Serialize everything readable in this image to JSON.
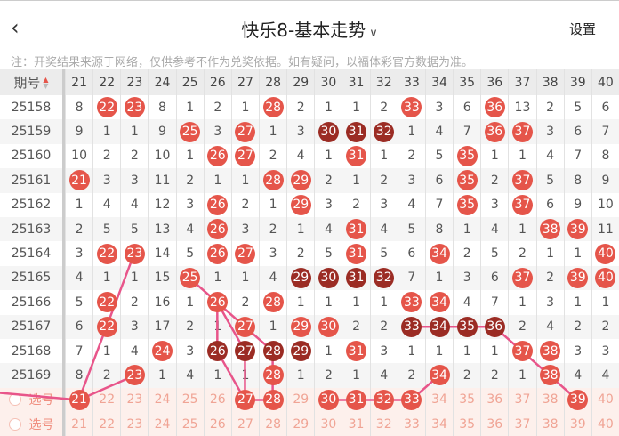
{
  "header": {
    "back_icon": "chevron-left-icon",
    "title": "快乐8-基本走势",
    "title_dropdown_icon": "chevron-down-icon",
    "settings_label": "设置"
  },
  "note": "注：开奖结果来源于网络，仅供参考不作为兑奖依据。如有疑问，以福体彩官方数据为准。",
  "colors": {
    "ball": "#e5554a",
    "consecutive_ball": "#9b2c24",
    "line": "#e8558a",
    "select_row_bg": "#fdf0ec"
  },
  "table": {
    "period_header": "期号",
    "columns": [
      "21",
      "22",
      "23",
      "24",
      "25",
      "26",
      "27",
      "28",
      "29",
      "30",
      "31",
      "32",
      "33",
      "34",
      "35",
      "36",
      "37",
      "38",
      "39",
      "40"
    ],
    "rows": [
      {
        "period": "25158",
        "cells": [
          "8",
          "22",
          "23",
          "8",
          "1",
          "2",
          "1",
          "28",
          "2",
          "1",
          "1",
          "2",
          "33",
          "3",
          "6",
          "36",
          "13",
          "2",
          "5",
          "6"
        ],
        "hits": [
          22,
          23,
          28,
          33,
          36
        ],
        "consecutive": []
      },
      {
        "period": "25159",
        "cells": [
          "9",
          "1",
          "1",
          "9",
          "25",
          "3",
          "27",
          "1",
          "3",
          "30",
          "31",
          "32",
          "1",
          "4",
          "7",
          "36",
          "37",
          "3",
          "6",
          "7"
        ],
        "hits": [
          25,
          27,
          30,
          31,
          32,
          36,
          37
        ],
        "consecutive": [
          30,
          31,
          32
        ]
      },
      {
        "period": "25160",
        "cells": [
          "10",
          "2",
          "2",
          "10",
          "1",
          "26",
          "27",
          "2",
          "4",
          "1",
          "31",
          "1",
          "2",
          "5",
          "35",
          "1",
          "1",
          "4",
          "7",
          "8"
        ],
        "hits": [
          26,
          27,
          31,
          35
        ],
        "consecutive": []
      },
      {
        "period": "25161",
        "cells": [
          "21",
          "3",
          "3",
          "11",
          "2",
          "1",
          "1",
          "28",
          "29",
          "2",
          "1",
          "2",
          "3",
          "6",
          "35",
          "2",
          "37",
          "5",
          "8",
          "9"
        ],
        "hits": [
          21,
          28,
          29,
          35,
          37
        ],
        "consecutive": []
      },
      {
        "period": "25162",
        "cells": [
          "1",
          "4",
          "4",
          "12",
          "3",
          "26",
          "2",
          "1",
          "29",
          "3",
          "2",
          "3",
          "4",
          "7",
          "35",
          "3",
          "37",
          "6",
          "9",
          "10"
        ],
        "hits": [
          26,
          29,
          35,
          37
        ],
        "consecutive": []
      },
      {
        "period": "25163",
        "cells": [
          "2",
          "5",
          "5",
          "13",
          "4",
          "26",
          "3",
          "2",
          "1",
          "4",
          "31",
          "4",
          "5",
          "8",
          "1",
          "4",
          "1",
          "38",
          "39",
          "11"
        ],
        "hits": [
          26,
          31,
          38,
          39
        ],
        "consecutive": []
      },
      {
        "period": "25164",
        "cells": [
          "3",
          "22",
          "23",
          "14",
          "5",
          "26",
          "27",
          "3",
          "2",
          "5",
          "31",
          "5",
          "6",
          "34",
          "2",
          "5",
          "2",
          "1",
          "1",
          "40"
        ],
        "hits": [
          22,
          23,
          26,
          27,
          31,
          34,
          40
        ],
        "consecutive": []
      },
      {
        "period": "25165",
        "cells": [
          "4",
          "1",
          "1",
          "15",
          "25",
          "1",
          "1",
          "4",
          "29",
          "30",
          "31",
          "32",
          "7",
          "1",
          "3",
          "6",
          "37",
          "2",
          "39",
          "40"
        ],
        "hits": [
          25,
          29,
          30,
          31,
          32,
          37,
          39,
          40
        ],
        "consecutive": [
          29,
          30,
          31,
          32
        ]
      },
      {
        "period": "25166",
        "cells": [
          "5",
          "22",
          "2",
          "16",
          "1",
          "26",
          "2",
          "28",
          "1",
          "1",
          "1",
          "1",
          "33",
          "34",
          "4",
          "7",
          "1",
          "3",
          "1",
          "1"
        ],
        "hits": [
          22,
          26,
          28,
          33,
          34
        ],
        "consecutive": []
      },
      {
        "period": "25167",
        "cells": [
          "6",
          "22",
          "3",
          "17",
          "2",
          "1",
          "27",
          "1",
          "29",
          "30",
          "2",
          "2",
          "33",
          "34",
          "35",
          "36",
          "2",
          "4",
          "2",
          "2"
        ],
        "hits": [
          22,
          27,
          29,
          30,
          33,
          34,
          35,
          36
        ],
        "consecutive": [
          33,
          34,
          35,
          36
        ]
      },
      {
        "period": "25168",
        "cells": [
          "7",
          "1",
          "4",
          "24",
          "3",
          "26",
          "27",
          "28",
          "29",
          "1",
          "31",
          "3",
          "1",
          "1",
          "1",
          "1",
          "37",
          "38",
          "3",
          "3"
        ],
        "hits": [
          24,
          26,
          27,
          28,
          29,
          31,
          37,
          38
        ],
        "consecutive": [
          26,
          27,
          28,
          29
        ]
      },
      {
        "period": "25169",
        "cells": [
          "8",
          "2",
          "23",
          "1",
          "4",
          "1",
          "1",
          "28",
          "1",
          "2",
          "1",
          "4",
          "2",
          "34",
          "2",
          "2",
          "1",
          "38",
          "4",
          "4"
        ],
        "hits": [
          23,
          28,
          34,
          38
        ],
        "consecutive": []
      }
    ],
    "select_rows": [
      {
        "label": "选号",
        "selected": [
          21,
          27,
          28,
          30,
          31,
          32,
          33,
          39
        ]
      },
      {
        "label": "选号",
        "selected": []
      }
    ],
    "trend_lines": [
      [
        [
          "25164",
          23
        ],
        [
          "select",
          21
        ],
        [
          "25169",
          23
        ]
      ],
      [
        [
          "25165",
          25
        ],
        [
          "25166",
          26
        ],
        [
          "25167",
          27
        ],
        [
          "25168",
          28
        ],
        [
          "25169",
          28
        ],
        [
          "select",
          28
        ],
        [
          "select",
          27
        ]
      ],
      [
        [
          "25166",
          26
        ],
        [
          "25168",
          26
        ],
        [
          "select",
          27
        ]
      ],
      [
        [
          "25166",
          26
        ],
        [
          "25168",
          27
        ],
        [
          "select",
          27
        ]
      ],
      [
        [
          "select",
          30
        ],
        [
          "select",
          31
        ],
        [
          "select",
          32
        ],
        [
          "select",
          33
        ],
        [
          "25169",
          34
        ]
      ],
      [
        [
          "25167",
          33
        ],
        [
          "25167",
          34
        ],
        [
          "25167",
          35
        ],
        [
          "25167",
          36
        ],
        [
          "25168",
          37
        ],
        [
          "25169",
          38
        ],
        [
          "select",
          39
        ]
      ]
    ]
  }
}
